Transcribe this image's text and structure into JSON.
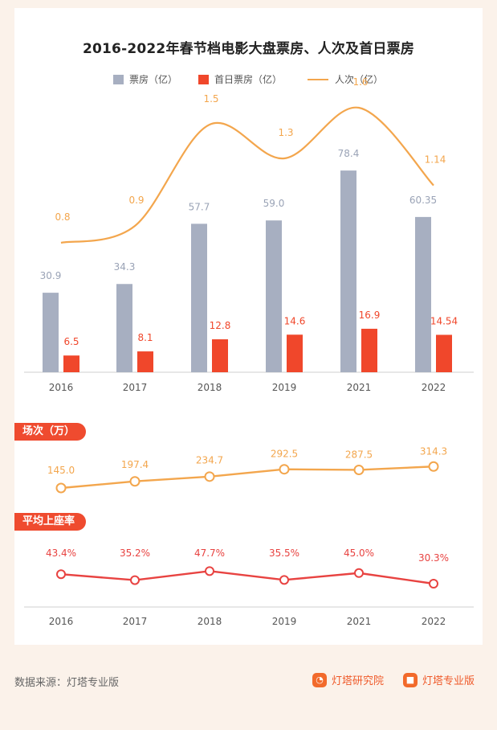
{
  "title": "2016-2022年春节档电影大盘票房、人次及首日票房",
  "legend": {
    "box_office": "票房（亿）",
    "first_day": "首日票房（亿）",
    "admissions": "人次（亿）"
  },
  "colors": {
    "box_office": "#a7afc1",
    "first_day": "#f0472b",
    "admissions": "#f3a64d",
    "screenings": "#f3a64d",
    "occupancy": "#e84341",
    "pill": "#ef4b2f"
  },
  "section_screenings": "场次（万）",
  "section_occupancy": "平均上座率",
  "footer": {
    "source": "数据来源：灯塔专业版",
    "brand_research": "灯塔研究院",
    "brand_pro": "灯塔专业版"
  },
  "chart_data": [
    {
      "type": "bar",
      "title": "2016-2022年春节档电影大盘票房、人次及首日票房",
      "categories": [
        "2016",
        "2017",
        "2018",
        "2019",
        "2021",
        "2022"
      ],
      "series": [
        {
          "name": "票房（亿）",
          "values": [
            30.9,
            34.3,
            57.7,
            59.0,
            78.4,
            60.35
          ],
          "labels": [
            "30.9",
            "34.3",
            "57.7",
            "59.0",
            "78.4",
            "60.35"
          ]
        },
        {
          "name": "首日票房（亿）",
          "values": [
            6.5,
            8.1,
            12.8,
            14.6,
            16.9,
            14.54
          ],
          "labels": [
            "6.5",
            "8.1",
            "12.8",
            "14.6",
            "16.9",
            "14.54"
          ]
        }
      ],
      "ylim": [
        0,
        90
      ]
    },
    {
      "type": "line",
      "categories": [
        "2016",
        "2017",
        "2018",
        "2019",
        "2021",
        "2022"
      ],
      "series": [
        {
          "name": "人次（亿）",
          "values": [
            0.8,
            0.9,
            1.5,
            1.3,
            1.6,
            1.14
          ],
          "labels": [
            "0.8",
            "0.9",
            "1.5",
            "1.3",
            "1.6",
            "1.14"
          ]
        }
      ]
    },
    {
      "type": "line",
      "title": "场次（万）",
      "categories": [
        "2016",
        "2017",
        "2018",
        "2019",
        "2021",
        "2022"
      ],
      "series": [
        {
          "values": [
            145.0,
            197.4,
            234.7,
            292.5,
            287.5,
            314.3
          ],
          "labels": [
            "145.0",
            "197.4",
            "234.7",
            "292.5",
            "287.5",
            "314.3"
          ]
        }
      ]
    },
    {
      "type": "line",
      "title": "平均上座率",
      "categories": [
        "2016",
        "2017",
        "2018",
        "2019",
        "2021",
        "2022"
      ],
      "series": [
        {
          "values": [
            43.4,
            35.2,
            47.7,
            35.5,
            45.0,
            30.3
          ],
          "labels": [
            "43.4%",
            "35.2%",
            "47.7%",
            "35.5%",
            "45.0%",
            "30.3%"
          ]
        }
      ]
    }
  ]
}
